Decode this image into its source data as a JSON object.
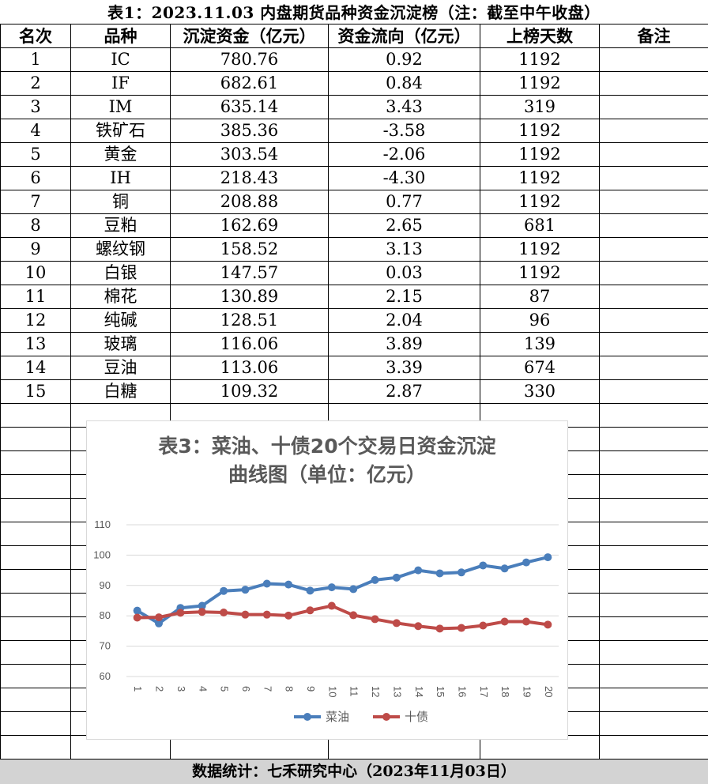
{
  "title": "表1：2023.11.03 内盘期货品种资金沉淀榜（注：截至中午收盘）",
  "table": {
    "headers": [
      "名次",
      "品种",
      "沉淀资金（亿元）",
      "资金流向（亿元）",
      "上榜天数",
      "备注"
    ],
    "rows": [
      [
        "1",
        "IC",
        "780.76",
        "0.92",
        "1192",
        ""
      ],
      [
        "2",
        "IF",
        "682.61",
        "0.84",
        "1192",
        ""
      ],
      [
        "3",
        "IM",
        "635.14",
        "3.43",
        "319",
        ""
      ],
      [
        "4",
        "铁矿石",
        "385.36",
        "-3.58",
        "1192",
        ""
      ],
      [
        "5",
        "黄金",
        "303.54",
        "-2.06",
        "1192",
        ""
      ],
      [
        "6",
        "IH",
        "218.43",
        "-4.30",
        "1192",
        ""
      ],
      [
        "7",
        "铜",
        "208.88",
        "0.77",
        "1192",
        ""
      ],
      [
        "8",
        "豆粕",
        "162.69",
        "2.65",
        "681",
        ""
      ],
      [
        "9",
        "螺纹钢",
        "158.52",
        "3.13",
        "1192",
        ""
      ],
      [
        "10",
        "白银",
        "147.57",
        "0.03",
        "1192",
        ""
      ],
      [
        "11",
        "棉花",
        "130.89",
        "2.15",
        "87",
        ""
      ],
      [
        "12",
        "纯碱",
        "128.51",
        "2.04",
        "96",
        ""
      ],
      [
        "13",
        "玻璃",
        "116.06",
        "3.89",
        "139",
        ""
      ],
      [
        "14",
        "豆油",
        "113.06",
        "3.39",
        "674",
        ""
      ],
      [
        "15",
        "白糖",
        "109.32",
        "2.87",
        "330",
        ""
      ]
    ],
    "empty_rows": 15
  },
  "footer": "数据统计：七禾研究中心（2023年11月03日）",
  "chart_data": {
    "type": "line",
    "title": "表3：菜油、十债20个交易日资金沉淀曲线图（单位：亿元）",
    "title_lines": [
      "表3：菜油、十债20个交易日资金沉淀",
      "曲线图（单位：亿元）"
    ],
    "x": [
      "1",
      "2",
      "3",
      "4",
      "5",
      "6",
      "7",
      "8",
      "9",
      "10",
      "11",
      "12",
      "13",
      "14",
      "15",
      "16",
      "17",
      "18",
      "19",
      "20"
    ],
    "ylim": [
      60,
      110
    ],
    "yticks": [
      60,
      70,
      80,
      90,
      100,
      110
    ],
    "grid": true,
    "legend_position": "bottom",
    "series": [
      {
        "name": "菜油",
        "color": "#4a7ebb",
        "values": [
          81.7,
          77.5,
          82.6,
          83.3,
          88.2,
          88.6,
          90.6,
          90.3,
          88.3,
          89.4,
          88.8,
          91.8,
          92.6,
          95.0,
          94.0,
          94.3,
          96.6,
          95.6,
          97.6,
          99.3
        ]
      },
      {
        "name": "十债",
        "color": "#be4b48",
        "values": [
          79.4,
          79.5,
          81.0,
          81.3,
          81.1,
          80.4,
          80.4,
          80.1,
          81.8,
          83.3,
          80.2,
          78.9,
          77.6,
          76.6,
          75.8,
          76.0,
          76.8,
          78.1,
          78.1,
          77.1
        ]
      }
    ]
  }
}
